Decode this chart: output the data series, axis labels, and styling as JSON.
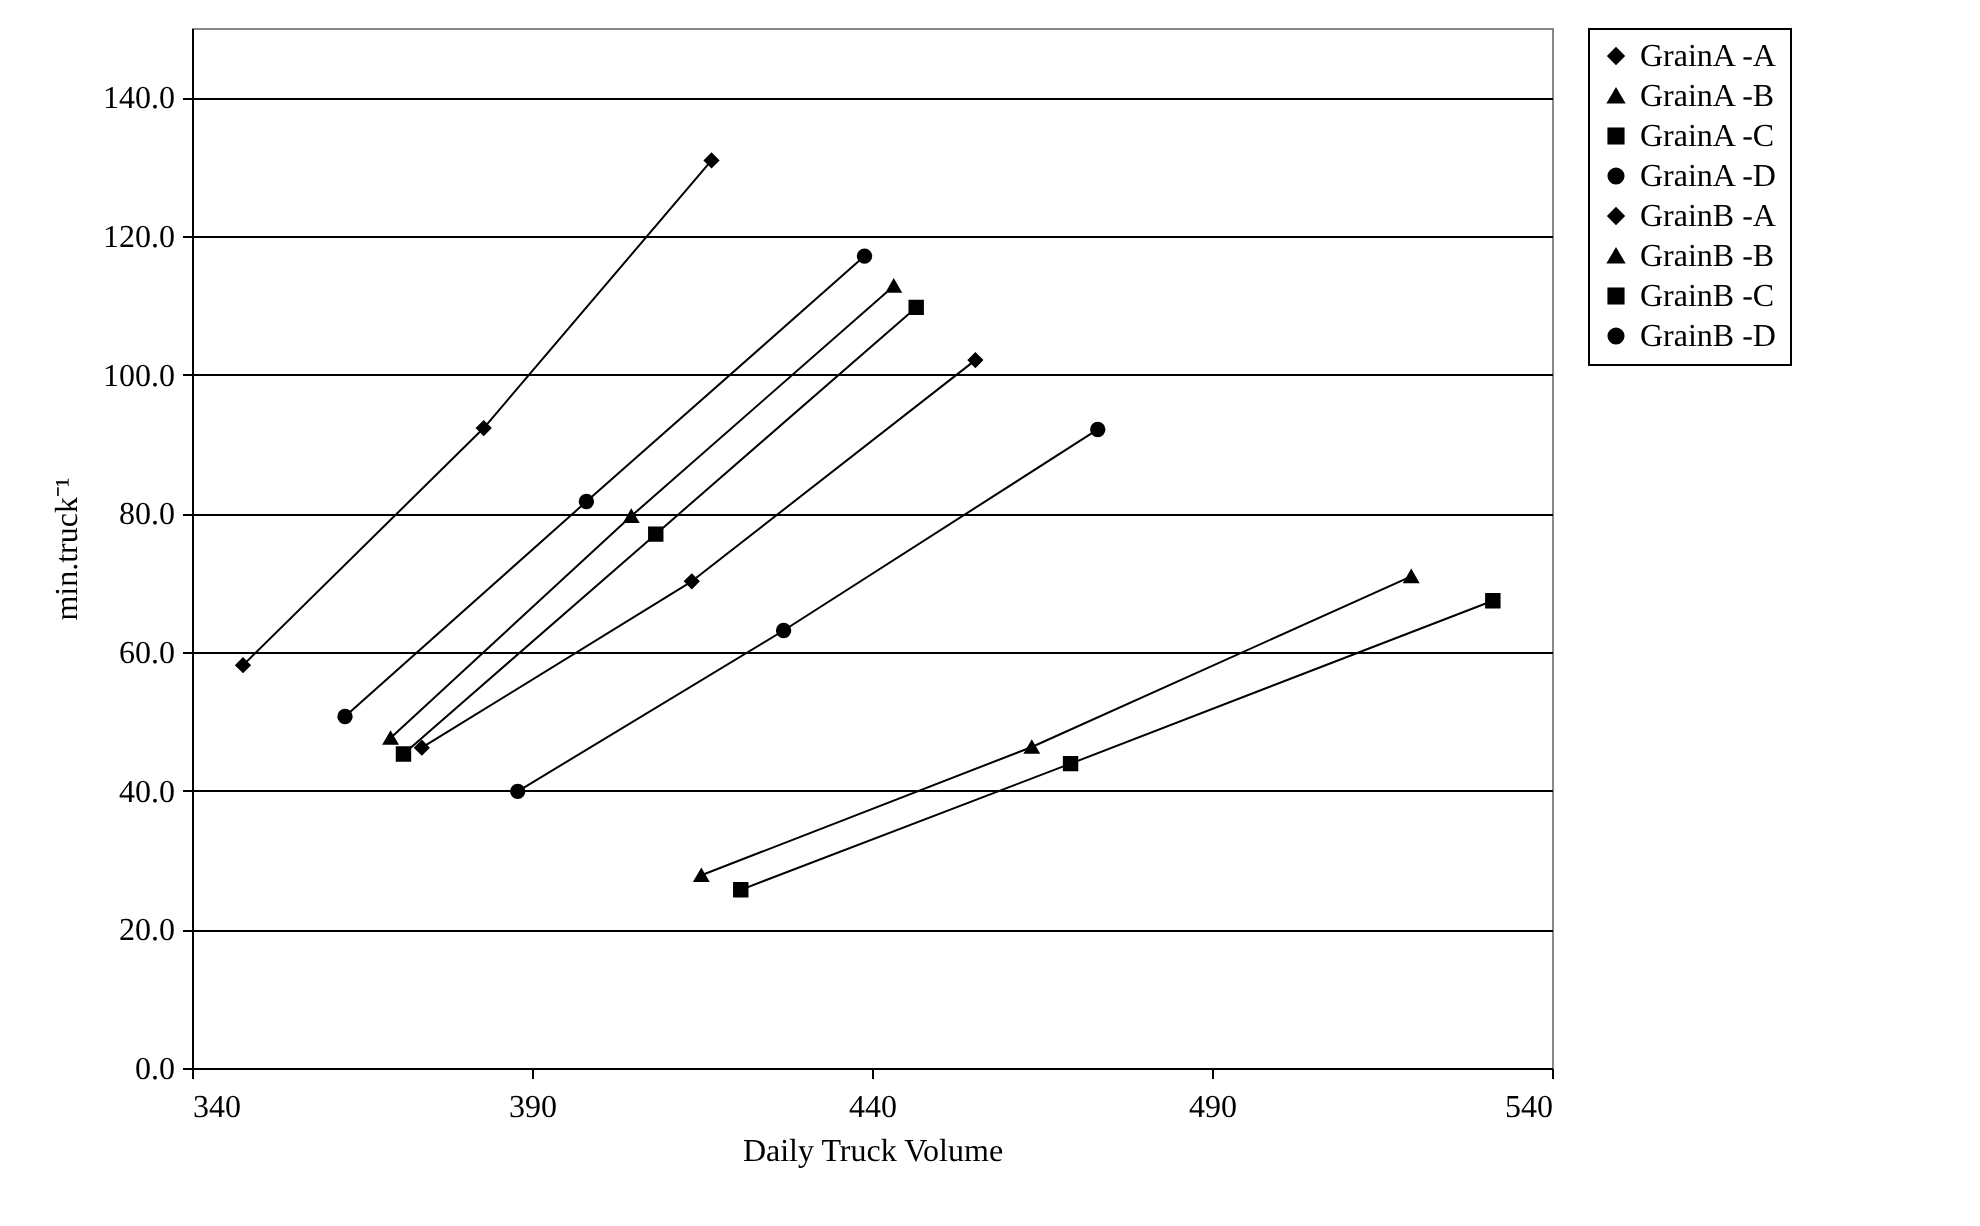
{
  "chart_data": {
    "type": "line",
    "xlabel": "Daily Truck Volume",
    "ylabel": "min.truck⁻¹",
    "xlim": [
      340,
      540
    ],
    "xticks": [
      340,
      390,
      440,
      490,
      540
    ],
    "ylim": [
      0,
      150
    ],
    "yticks": [
      {
        "value": 0,
        "label": "0.0"
      },
      {
        "value": 20,
        "label": "20.0"
      },
      {
        "value": 40,
        "label": "40.0"
      },
      {
        "value": 60,
        "label": "60.0"
      },
      {
        "value": 80,
        "label": "80.0"
      },
      {
        "value": 100,
        "label": "100.0"
      },
      {
        "value": 120,
        "label": "120.0"
      },
      {
        "value": 140,
        "label": "140.0"
      }
    ],
    "grid": "y",
    "legend": "right",
    "series": [
      {
        "name": "GrainA -A",
        "color": "#000000",
        "marker": "diamond",
        "x": [
          373.8,
          413.5,
          455.2
        ],
        "values": [
          46.2,
          70.2,
          102.1
        ]
      },
      {
        "name": "GrainA -B",
        "color": "#000000",
        "marker": "triangle",
        "x": [
          414.9,
          463.5,
          519.3
        ],
        "values": [
          27.8,
          46.3,
          70.9
        ]
      },
      {
        "name": "GrainA -C",
        "color": "#000000",
        "marker": "square",
        "x": [
          420.7,
          469.2,
          531.3
        ],
        "values": [
          25.7,
          43.9,
          67.4
        ]
      },
      {
        "name": "GrainA -D",
        "color": "#000000",
        "marker": "circle",
        "x": [
          387.9,
          427.0,
          473.2
        ],
        "values": [
          39.9,
          63.1,
          92.1
        ]
      },
      {
        "name": "GrainB -A",
        "color": "#000000",
        "marker": "diamond",
        "x": [
          347.5,
          382.9,
          416.4
        ],
        "values": [
          58.1,
          92.3,
          130.9
        ]
      },
      {
        "name": "GrainB -B",
        "color": "#000000",
        "marker": "triangle",
        "x": [
          369.2,
          404.6,
          443.2
        ],
        "values": [
          47.6,
          79.6,
          112.8
        ]
      },
      {
        "name": "GrainB -C",
        "color": "#000000",
        "marker": "square",
        "x": [
          371.1,
          408.2,
          446.5
        ],
        "values": [
          45.3,
          77.0,
          109.7
        ]
      },
      {
        "name": "GrainB -D",
        "color": "#000000",
        "marker": "circle",
        "x": [
          362.5,
          398.0,
          438.9
        ],
        "values": [
          50.7,
          81.7,
          117.1
        ]
      }
    ]
  }
}
